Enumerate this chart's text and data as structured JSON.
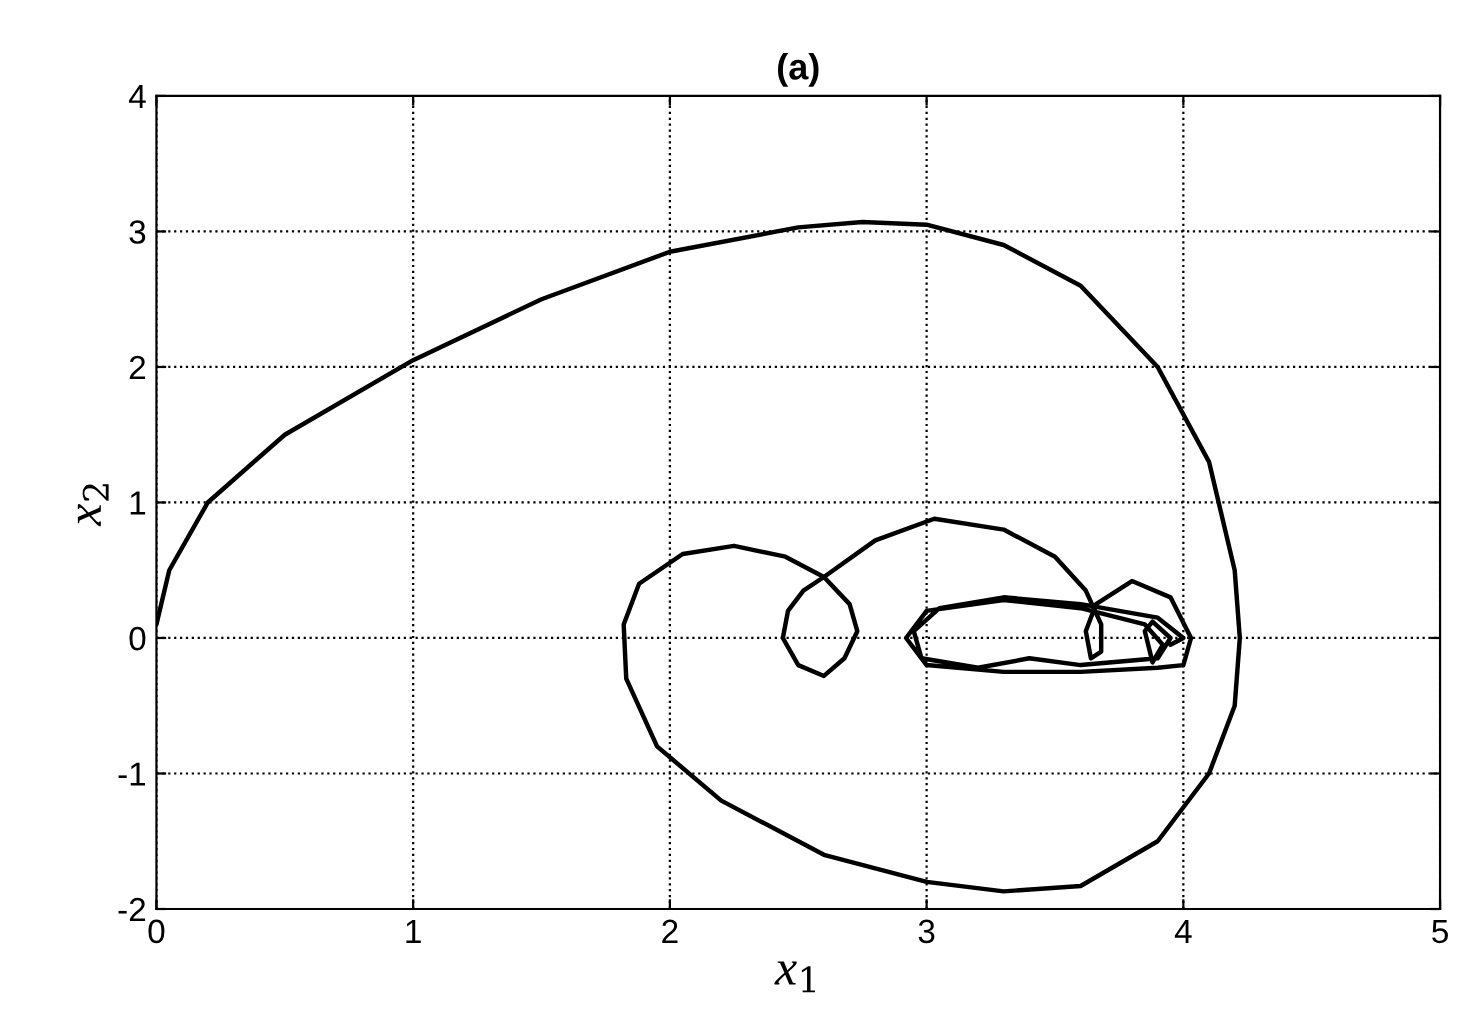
{
  "chart_data": {
    "type": "line",
    "title": "(a)",
    "xlabel": "x$_{1}$",
    "ylabel": "x$_{2}$",
    "xlim": [
      0,
      5
    ],
    "ylim": [
      -2,
      4
    ],
    "xticks": [
      0,
      1,
      2,
      3,
      4,
      5
    ],
    "yticks": [
      -2,
      -1,
      0,
      1,
      2,
      3,
      4
    ],
    "grid": true,
    "line_style": "solid",
    "series": [
      {
        "color": "#000000",
        "x": [
          0.0,
          0.05,
          0.2,
          0.5,
          1.0,
          1.5,
          2.0,
          2.5,
          2.75,
          3.0,
          3.3,
          3.6,
          3.9,
          4.1,
          4.2,
          4.22,
          4.2,
          4.1,
          3.9,
          3.6,
          3.3,
          3.0,
          2.6,
          2.2,
          1.95,
          1.83,
          1.82,
          1.88,
          2.05,
          2.25,
          2.45,
          2.6,
          2.7,
          2.73,
          2.68,
          2.6,
          2.5,
          2.44,
          2.46,
          2.52,
          2.6,
          2.8,
          3.03,
          3.3,
          3.5,
          3.62,
          3.68,
          3.68,
          3.64,
          3.62,
          3.66,
          3.8,
          3.95,
          4.03,
          4.0,
          3.9,
          3.6,
          3.3,
          3.0,
          2.92,
          3.0,
          3.3,
          3.6,
          3.85,
          3.92,
          3.88,
          3.85,
          3.88,
          3.95,
          3.9,
          3.6,
          3.4,
          3.2,
          2.98,
          2.95,
          3.05,
          3.3,
          3.6,
          3.9,
          4.0,
          3.95
        ],
        "values": [
          0.1,
          0.5,
          1.0,
          1.5,
          2.05,
          2.5,
          2.85,
          3.03,
          3.07,
          3.05,
          2.9,
          2.6,
          2.0,
          1.3,
          0.5,
          0.0,
          -0.5,
          -1.0,
          -1.5,
          -1.83,
          -1.87,
          -1.8,
          -1.6,
          -1.2,
          -0.8,
          -0.3,
          0.1,
          0.4,
          0.62,
          0.68,
          0.6,
          0.45,
          0.25,
          0.05,
          -0.15,
          -0.28,
          -0.2,
          0.0,
          0.2,
          0.35,
          0.45,
          0.72,
          0.88,
          0.8,
          0.6,
          0.35,
          0.1,
          -0.1,
          -0.15,
          0.05,
          0.25,
          0.42,
          0.3,
          0.0,
          -0.2,
          -0.22,
          -0.25,
          -0.25,
          -0.2,
          0.0,
          0.2,
          0.28,
          0.22,
          0.1,
          -0.05,
          -0.18,
          0.05,
          0.12,
          0.0,
          -0.15,
          -0.2,
          -0.15,
          -0.22,
          -0.15,
          0.05,
          0.22,
          0.3,
          0.25,
          0.15,
          0.0,
          -0.05
        ]
      }
    ]
  }
}
